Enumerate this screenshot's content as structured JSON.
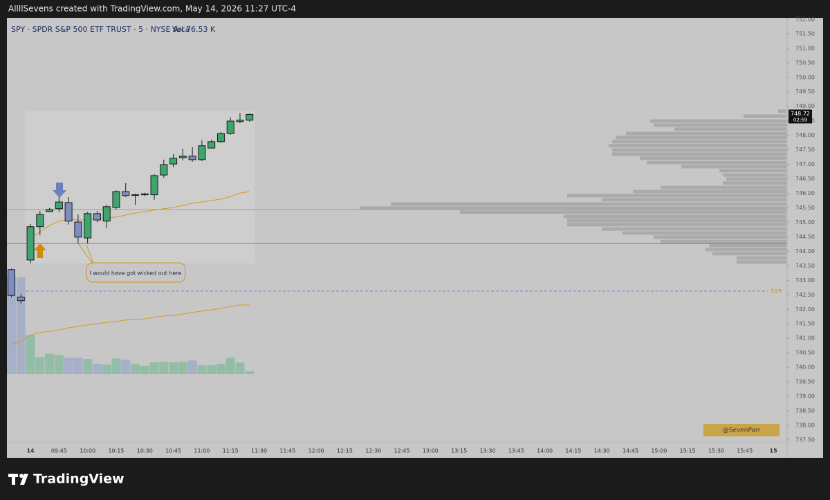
{
  "chart_data": {
    "type": "candlestick",
    "top_bar": "AllllSevens created with TradingView.com, May 14, 2026 11:27 UTC-4",
    "title": "SPY · SPDR S&P 500 ETF TRUST · 5 · NYSE Arca",
    "volume_label": "Vol",
    "volume_value_label": "76.53 K",
    "annotation": "I would have got wicked out here",
    "watermark": "@SevenParr",
    "brand": "TradingView",
    "countdown": "02:59",
    "last_price": 748.72,
    "up_color": "#3ea56f",
    "down_color": "#7d8dbd",
    "volume_up_color": "#8dbba3",
    "volume_down_color": "#a2adc8",
    "open": [
      743.37,
      742.42,
      743.7,
      744.85,
      745.37,
      745.47,
      745.68,
      745.01,
      744.46,
      745.3,
      745.04,
      745.51,
      746.06,
      745.94,
      745.95,
      745.95,
      746.63,
      747.01,
      747.23,
      747.28,
      747.16,
      747.56,
      747.78,
      748.06,
      748.47,
      748.52
    ],
    "high": [
      743.4,
      742.52,
      744.94,
      745.39,
      745.49,
      745.87,
      745.87,
      745.27,
      745.35,
      745.39,
      745.6,
      746.1,
      746.35,
      745.99,
      746.02,
      746.66,
      747.16,
      747.35,
      747.54,
      747.59,
      747.83,
      747.85,
      748.11,
      748.61,
      748.76,
      748.75
    ],
    "low": [
      742.42,
      742.2,
      743.58,
      744.55,
      745.35,
      745.35,
      744.92,
      744.27,
      744.27,
      745.0,
      744.8,
      745.45,
      745.87,
      745.6,
      745.9,
      745.78,
      746.54,
      746.9,
      747.13,
      747.09,
      747.11,
      747.54,
      747.73,
      748.02,
      748.42,
      748.47
    ],
    "close": [
      742.48,
      742.3,
      744.85,
      745.27,
      745.44,
      745.7,
      745.04,
      744.49,
      745.3,
      745.08,
      745.54,
      746.06,
      745.92,
      745.95,
      745.98,
      746.61,
      746.99,
      747.21,
      747.28,
      747.16,
      747.64,
      747.78,
      748.06,
      748.49,
      748.52,
      748.72
    ],
    "volume": [
      2680,
      2680,
      1080,
      475,
      570,
      530,
      455,
      455,
      420,
      285,
      265,
      435,
      400,
      285,
      230,
      325,
      340,
      325,
      340,
      380,
      245,
      245,
      285,
      455,
      325,
      76.53
    ],
    "series": [
      {
        "color": "#d49a1a",
        "values": [
          null,
          null,
          744.44,
          744.68,
          744.89,
          745.04,
          745.11,
          745.08,
          745.08,
          745.13,
          745.16,
          745.18,
          745.25,
          745.32,
          745.37,
          745.42,
          745.47,
          745.51,
          745.58,
          745.66,
          745.7,
          745.75,
          745.8,
          745.89,
          746.01,
          746.06
        ]
      },
      {
        "color": "#d49a1a",
        "values": [
          740.79,
          740.89,
          741.12,
          741.2,
          741.24,
          741.29,
          741.36,
          741.41,
          741.46,
          741.51,
          741.55,
          741.58,
          741.63,
          741.65,
          741.67,
          741.72,
          741.77,
          741.79,
          741.84,
          741.89,
          741.94,
          741.98,
          742.03,
          742.1,
          742.15,
          742.15
        ]
      }
    ],
    "levels": [
      {
        "value": 745.44,
        "color": "#d49a1a"
      },
      {
        "value": 744.27,
        "color": "#e8504f"
      },
      {
        "value": 742.63,
        "color": "#6f82c4",
        "dashed": true,
        "label": "5/29"
      }
    ],
    "volume_profile": {
      "color": "#aaaaaa",
      "prices": [
        748.83,
        748.66,
        748.49,
        748.35,
        748.21,
        748.06,
        747.92,
        747.78,
        747.64,
        747.49,
        747.35,
        747.21,
        747.06,
        746.92,
        746.78,
        746.63,
        746.49,
        746.35,
        746.2,
        746.06,
        745.92,
        745.78,
        745.63,
        745.49,
        745.35,
        745.2,
        745.06,
        744.92,
        744.77,
        744.63,
        744.49,
        744.34,
        744.2,
        744.06,
        743.92,
        743.77,
        743.63
      ],
      "values": [
        12,
        62,
        197,
        192,
        162,
        232,
        247,
        252,
        257,
        252,
        252,
        212,
        202,
        152,
        97,
        92,
        87,
        92,
        182,
        222,
        317,
        267,
        572,
        617,
        472,
        322,
        317,
        317,
        267,
        237,
        192,
        182,
        112,
        117,
        107,
        72,
        72
      ]
    },
    "xticks": [
      "14",
      "09:45",
      "10:00",
      "10:15",
      "10:30",
      "10:45",
      "11:00",
      "11:15",
      "11:30",
      "11:45",
      "12:00",
      "12:15",
      "12:30",
      "12:45",
      "13:00",
      "13:15",
      "13:30",
      "13:45",
      "14:00",
      "14:15",
      "14:30",
      "14:45",
      "15:00",
      "15:15",
      "15:30",
      "15:45",
      "15"
    ],
    "ylim": [
      736.88,
      752.14
    ],
    "yticks": [
      {
        "value": 752,
        "label": "752.00"
      },
      {
        "value": 751.5,
        "label": "751.50"
      },
      {
        "value": 751,
        "label": "751.00"
      },
      {
        "value": 750.5,
        "label": "750.50"
      },
      {
        "value": 750,
        "label": "750.00"
      },
      {
        "value": 749.5,
        "label": "749.50"
      },
      {
        "value": 749,
        "label": "749.00"
      },
      {
        "value": 748.5,
        "label": "748.50"
      },
      {
        "value": 748,
        "label": "748.00"
      },
      {
        "value": 747.5,
        "label": "747.50"
      },
      {
        "value": 747,
        "label": "747.00"
      },
      {
        "value": 746.5,
        "label": "746.50"
      },
      {
        "value": 746,
        "label": "746.00"
      },
      {
        "value": 745.5,
        "label": "745.50"
      },
      {
        "value": 745,
        "label": "745.00"
      },
      {
        "value": 744.5,
        "label": "744.50"
      },
      {
        "value": 744,
        "label": "744.00"
      },
      {
        "value": 743.5,
        "label": "743.50"
      },
      {
        "value": 743,
        "label": "743.00"
      },
      {
        "value": 742.5,
        "label": "742.50"
      },
      {
        "value": 742,
        "label": "742.00"
      },
      {
        "value": 741.5,
        "label": "741.50"
      },
      {
        "value": 741,
        "label": "741.00"
      },
      {
        "value": 740.5,
        "label": "740.50"
      },
      {
        "value": 740,
        "label": "740.00"
      },
      {
        "value": 739.5,
        "label": "739.50"
      },
      {
        "value": 739,
        "label": "739.00"
      },
      {
        "value": 738.5,
        "label": "738.50"
      },
      {
        "value": 738,
        "label": "738.00"
      },
      {
        "value": 737.5,
        "label": "737.50"
      }
    ]
  }
}
